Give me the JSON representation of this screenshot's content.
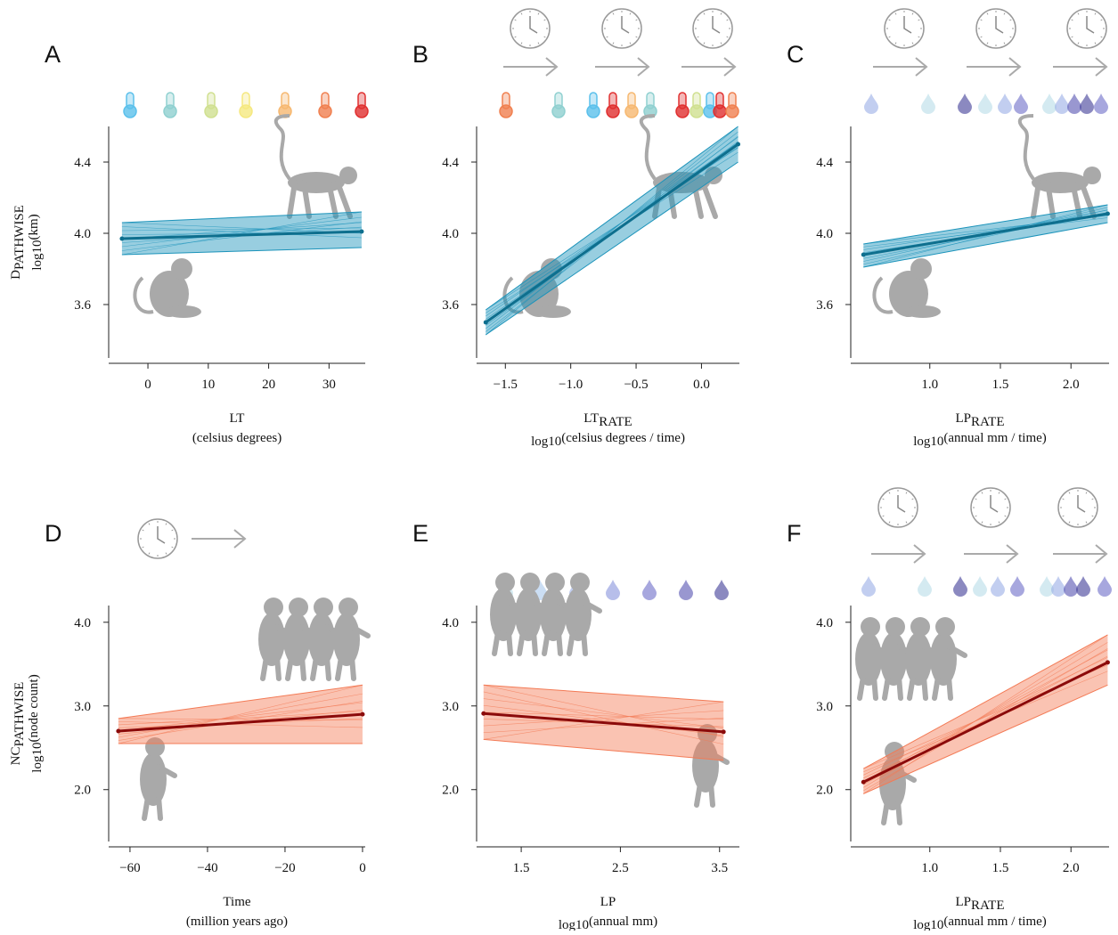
{
  "chart_data": [
    {
      "type": "line",
      "panel": "A",
      "x_label": {
        "text": "LT"
      },
      "x_unit": {
        "text": "(celsius degrees)"
      },
      "y_label": {
        "text": "D",
        "sub": "PATHWISE"
      },
      "y_unit": {
        "sub": "log10",
        "text": "(km)"
      },
      "xlim": [
        -6.5,
        36
      ],
      "xticks": [
        0,
        10,
        20,
        30
      ],
      "ylim": [
        3.3,
        4.6
      ],
      "yticks": [
        {
          "value": 3.6,
          "label": "3.6"
        },
        {
          "value": 4.0,
          "label": "4.0"
        },
        {
          "value": 4.4,
          "label": "4.4"
        }
      ],
      "series": [
        {
          "color": "#0e6f8e",
          "band_color": "#1b93ba",
          "x": [
            -4.3,
            35.4
          ],
          "values": [
            3.97,
            4.01
          ],
          "lower": [
            3.88,
            3.92
          ],
          "upper": [
            4.06,
            4.12
          ]
        }
      ]
    },
    {
      "type": "line",
      "panel": "B",
      "x_label": {
        "text": "LT",
        "sub": "RATE"
      },
      "x_unit": {
        "sub": "log10",
        "text": "(celsius degrees / time)"
      },
      "xlim": [
        -1.72,
        0.29
      ],
      "xticks": [
        {
          "value": -1.5,
          "label": "−1.5"
        },
        {
          "value": -1.0,
          "label": "−1.0"
        },
        {
          "value": -0.5,
          "label": "−0.5"
        },
        {
          "value": 0,
          "label": "0.0"
        }
      ],
      "ylim": [
        3.3,
        4.6
      ],
      "yticks": [
        {
          "value": 3.6,
          "label": "3.6"
        },
        {
          "value": 4.0,
          "label": "4.0"
        },
        {
          "value": 4.4,
          "label": "4.4"
        }
      ],
      "series": [
        {
          "color": "#0e6f8e",
          "band_color": "#1b93ba",
          "x": [
            -1.65,
            0.28
          ],
          "values": [
            3.5,
            4.5
          ],
          "lower": [
            3.43,
            4.4
          ],
          "upper": [
            3.57,
            4.6
          ]
        }
      ]
    },
    {
      "type": "line",
      "panel": "C",
      "x_label": {
        "text": "LP",
        "sub": "RATE"
      },
      "x_unit": {
        "sub": "log10",
        "text": "(annual mm / time)"
      },
      "xlim": [
        0.44,
        2.27
      ],
      "xticks": [
        {
          "value": 1.0,
          "label": "1.0"
        },
        1.5,
        {
          "value": 2.0,
          "label": "2.0"
        }
      ],
      "ylim": [
        3.3,
        4.6
      ],
      "yticks": [
        {
          "value": 3.6,
          "label": "3.6"
        },
        {
          "value": 4.0,
          "label": "4.0"
        },
        {
          "value": 4.4,
          "label": "4.4"
        }
      ],
      "series": [
        {
          "color": "#0e6f8e",
          "band_color": "#1b93ba",
          "x": [
            0.53,
            2.26
          ],
          "values": [
            3.88,
            4.11
          ],
          "lower": [
            3.81,
            4.06
          ],
          "upper": [
            3.94,
            4.16
          ]
        }
      ]
    },
    {
      "type": "line",
      "panel": "D",
      "x_label": {
        "text": "Time"
      },
      "x_unit": {
        "text": "(million years ago)"
      },
      "y_label": {
        "text": "NC",
        "sub": "PATHWISE"
      },
      "y_unit": {
        "sub": "log10",
        "text": "(node count)"
      },
      "xlim": [
        -65.5,
        0.7
      ],
      "xticks": [
        {
          "value": -60,
          "label": "−60"
        },
        {
          "value": -40,
          "label": "−40"
        },
        {
          "value": -20,
          "label": "−20"
        },
        0
      ],
      "ylim": [
        1.38,
        4.2
      ],
      "yticks": [
        {
          "value": 2.0,
          "label": "2.0"
        },
        {
          "value": 3.0,
          "label": "3.0"
        },
        {
          "value": 4.0,
          "label": "4.0"
        }
      ],
      "series": [
        {
          "color": "#8b0a0a",
          "band_color": "#f37a55",
          "x": [
            -63,
            0
          ],
          "values": [
            2.7,
            2.9
          ],
          "lower": [
            2.55,
            2.55
          ],
          "upper": [
            2.85,
            3.25
          ]
        }
      ]
    },
    {
      "type": "line",
      "panel": "E",
      "x_label": {
        "text": "LP"
      },
      "x_unit": {
        "sub": "log10",
        "text": "(annual mm)"
      },
      "xlim": [
        1.05,
        3.7
      ],
      "xticks": [
        1.5,
        2.5,
        3.5
      ],
      "ylim": [
        1.38,
        4.2
      ],
      "yticks": [
        {
          "value": 2.0,
          "label": "2.0"
        },
        {
          "value": 3.0,
          "label": "3.0"
        },
        {
          "value": 4.0,
          "label": "4.0"
        }
      ],
      "series": [
        {
          "color": "#8b0a0a",
          "band_color": "#f37a55",
          "x": [
            1.12,
            3.54
          ],
          "values": [
            2.91,
            2.69
          ],
          "lower": [
            2.6,
            2.35
          ],
          "upper": [
            3.25,
            3.05
          ]
        }
      ]
    },
    {
      "type": "line",
      "panel": "F",
      "x_label": {
        "text": "LP",
        "sub": "RATE"
      },
      "x_unit": {
        "sub": "log10",
        "text": "(annual mm / time)"
      },
      "xlim": [
        0.44,
        2.27
      ],
      "xticks": [
        {
          "value": 1.0,
          "label": "1.0"
        },
        1.5,
        {
          "value": 2.0,
          "label": "2.0"
        }
      ],
      "ylim": [
        1.38,
        4.2
      ],
      "yticks": [
        {
          "value": 2.0,
          "label": "2.0"
        },
        {
          "value": 3.0,
          "label": "3.0"
        },
        {
          "value": 4.0,
          "label": "4.0"
        }
      ],
      "series": [
        {
          "color": "#8b0a0a",
          "band_color": "#f37a55",
          "x": [
            0.53,
            2.26
          ],
          "values": [
            2.09,
            3.52
          ],
          "lower": [
            1.95,
            3.25
          ],
          "upper": [
            2.25,
            3.85
          ]
        }
      ]
    }
  ]
}
